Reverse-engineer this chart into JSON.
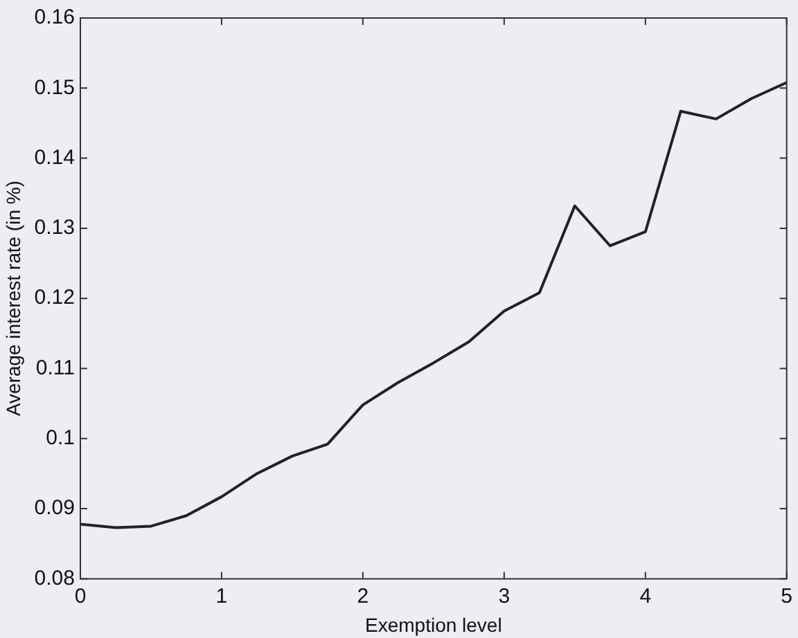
{
  "chart_data": {
    "type": "line",
    "xlabel": "Exemption level",
    "ylabel": "Average interest rate (in %)",
    "x": [
      0,
      0.25,
      0.5,
      0.75,
      1,
      1.25,
      1.5,
      1.75,
      2,
      2.25,
      2.5,
      2.75,
      3,
      3.25,
      3.5,
      3.75,
      4,
      4.25,
      4.5,
      4.75,
      5
    ],
    "series": [
      {
        "color": "#222222",
        "values": [
          0.0878,
          0.0873,
          0.0875,
          0.089,
          0.0917,
          0.095,
          0.0975,
          0.0992,
          0.1048,
          0.108,
          0.1108,
          0.1138,
          0.1182,
          0.1208,
          0.1332,
          0.1275,
          0.1295,
          0.1467,
          0.1456,
          0.1485,
          0.1508
        ]
      }
    ],
    "xlim": [
      0,
      5
    ],
    "xticks": [
      0,
      1,
      2,
      3,
      4,
      5
    ],
    "ylim": [
      0.08,
      0.16
    ],
    "yticks": [
      0.08,
      0.09,
      0.1,
      0.11,
      0.12,
      0.13,
      0.14,
      0.15,
      0.16
    ],
    "grid": false,
    "legend": false,
    "marker": "none",
    "line_style": "solid"
  }
}
